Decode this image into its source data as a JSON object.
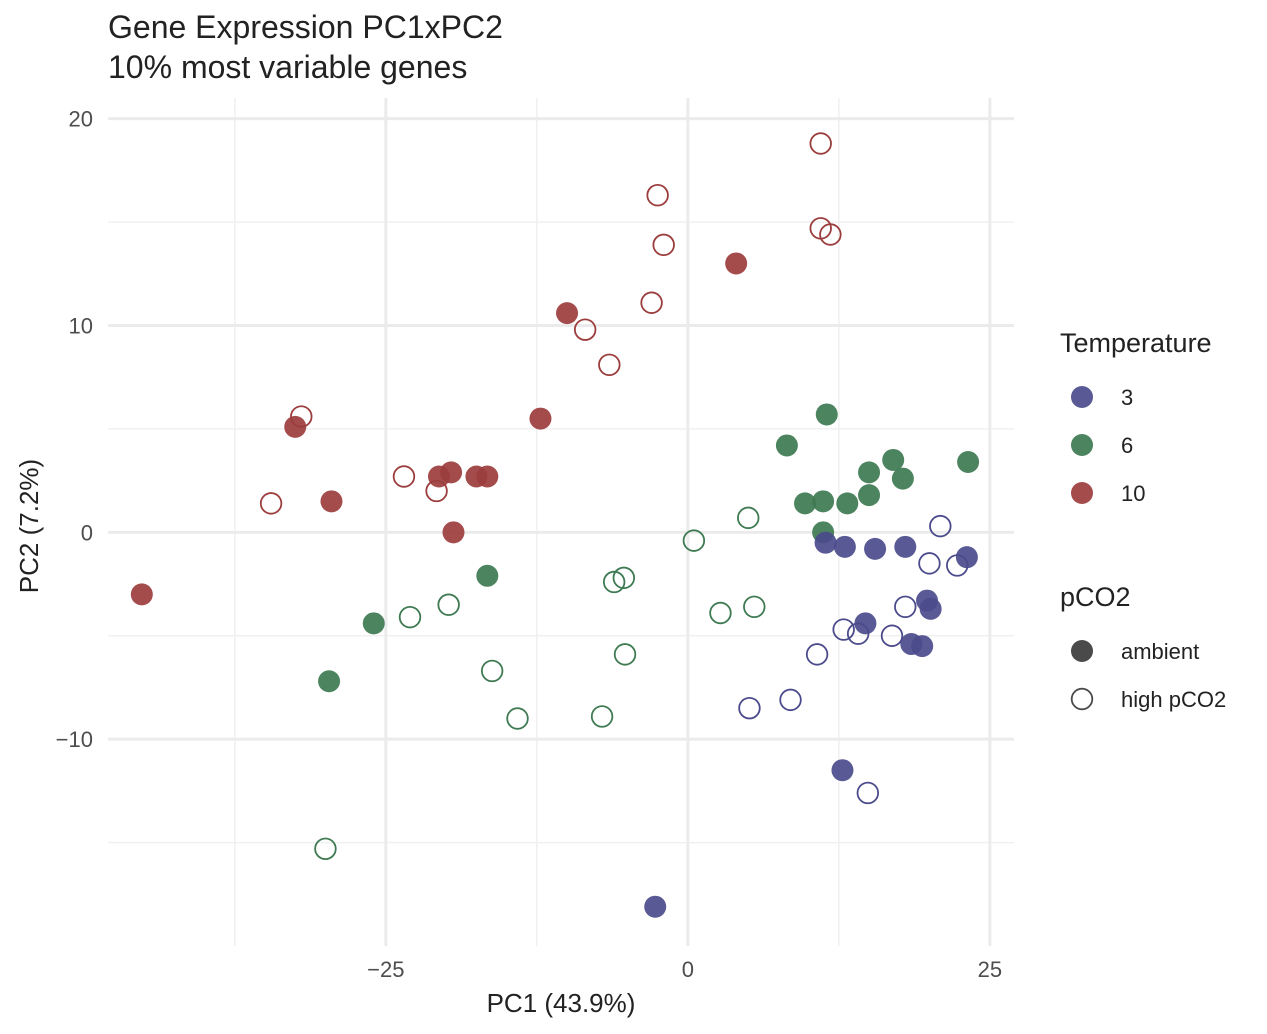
{
  "chart_data": {
    "type": "scatter",
    "title": "Gene Expression PC1xPC2",
    "subtitle": "10% most variable genes",
    "xlabel": "PC1 (43.9%)",
    "ylabel": "PC2 (7.2%)",
    "xlim": [
      -48,
      27
    ],
    "ylim": [
      -20,
      21
    ],
    "xticks": [
      -25,
      0,
      25
    ],
    "xtick_labels": [
      "−25",
      "0",
      "25"
    ],
    "yticks": [
      -10,
      0,
      10,
      20
    ],
    "ytick_labels": [
      "−10",
      "0",
      "10",
      "20"
    ],
    "grid": true,
    "legend_position": "right",
    "legends": [
      {
        "title": "Temperature",
        "items": [
          {
            "label": "3",
            "color": "#4b4b8c"
          },
          {
            "label": "6",
            "color": "#3e7a52"
          },
          {
            "label": "10",
            "color": "#9c3d3d"
          }
        ]
      },
      {
        "title": "pCO2",
        "items": [
          {
            "label": "ambient",
            "shape": "filled-circle"
          },
          {
            "label": "high pCO2",
            "shape": "open-circle"
          }
        ]
      }
    ],
    "colors": {
      "3": "#4b4b8c",
      "6": "#3e7a52",
      "10": "#9c3d3d"
    },
    "points": [
      {
        "x": 11,
        "y": 18.8,
        "temp": "10",
        "pco2": "high pCO2"
      },
      {
        "x": -2.5,
        "y": 16.3,
        "temp": "10",
        "pco2": "high pCO2"
      },
      {
        "x": 11,
        "y": 14.7,
        "temp": "10",
        "pco2": "high pCO2"
      },
      {
        "x": 11.8,
        "y": 14.4,
        "temp": "10",
        "pco2": "high pCO2"
      },
      {
        "x": -2,
        "y": 13.9,
        "temp": "10",
        "pco2": "high pCO2"
      },
      {
        "x": 4,
        "y": 13,
        "temp": "10",
        "pco2": "ambient"
      },
      {
        "x": -3,
        "y": 11.1,
        "temp": "10",
        "pco2": "high pCO2"
      },
      {
        "x": -10,
        "y": 10.6,
        "temp": "10",
        "pco2": "ambient"
      },
      {
        "x": -8.5,
        "y": 9.8,
        "temp": "10",
        "pco2": "high pCO2"
      },
      {
        "x": -6.5,
        "y": 8.1,
        "temp": "10",
        "pco2": "high pCO2"
      },
      {
        "x": -12.2,
        "y": 5.5,
        "temp": "10",
        "pco2": "ambient"
      },
      {
        "x": -32,
        "y": 5.6,
        "temp": "10",
        "pco2": "high pCO2"
      },
      {
        "x": -32.5,
        "y": 5.1,
        "temp": "10",
        "pco2": "ambient"
      },
      {
        "x": -23.5,
        "y": 2.7,
        "temp": "10",
        "pco2": "high pCO2"
      },
      {
        "x": -19.6,
        "y": 2.9,
        "temp": "10",
        "pco2": "ambient"
      },
      {
        "x": -20.6,
        "y": 2.7,
        "temp": "10",
        "pco2": "ambient"
      },
      {
        "x": -17.5,
        "y": 2.7,
        "temp": "10",
        "pco2": "ambient"
      },
      {
        "x": -16.6,
        "y": 2.7,
        "temp": "10",
        "pco2": "ambient"
      },
      {
        "x": -20.8,
        "y": 2,
        "temp": "10",
        "pco2": "high pCO2"
      },
      {
        "x": -34.5,
        "y": 1.4,
        "temp": "10",
        "pco2": "high pCO2"
      },
      {
        "x": -29.5,
        "y": 1.5,
        "temp": "10",
        "pco2": "ambient"
      },
      {
        "x": -19.4,
        "y": 0,
        "temp": "10",
        "pco2": "ambient"
      },
      {
        "x": -45.2,
        "y": -3,
        "temp": "10",
        "pco2": "ambient"
      },
      {
        "x": 11.5,
        "y": 5.7,
        "temp": "6",
        "pco2": "ambient"
      },
      {
        "x": 8.2,
        "y": 4.2,
        "temp": "6",
        "pco2": "ambient"
      },
      {
        "x": 17,
        "y": 3.5,
        "temp": "6",
        "pco2": "ambient"
      },
      {
        "x": 23.2,
        "y": 3.4,
        "temp": "6",
        "pco2": "ambient"
      },
      {
        "x": 15,
        "y": 2.9,
        "temp": "6",
        "pco2": "ambient"
      },
      {
        "x": 17.8,
        "y": 2.6,
        "temp": "6",
        "pco2": "ambient"
      },
      {
        "x": 15,
        "y": 1.8,
        "temp": "6",
        "pco2": "ambient"
      },
      {
        "x": 11.2,
        "y": 1.5,
        "temp": "6",
        "pco2": "ambient"
      },
      {
        "x": 9.7,
        "y": 1.4,
        "temp": "6",
        "pco2": "ambient"
      },
      {
        "x": 13.2,
        "y": 1.4,
        "temp": "6",
        "pco2": "ambient"
      },
      {
        "x": 11.2,
        "y": 0,
        "temp": "6",
        "pco2": "ambient"
      },
      {
        "x": 5,
        "y": 0.7,
        "temp": "6",
        "pco2": "high pCO2"
      },
      {
        "x": 0.5,
        "y": -0.4,
        "temp": "6",
        "pco2": "high pCO2"
      },
      {
        "x": -5.3,
        "y": -2.2,
        "temp": "6",
        "pco2": "high pCO2"
      },
      {
        "x": -6.1,
        "y": -2.4,
        "temp": "6",
        "pco2": "high pCO2"
      },
      {
        "x": -16.6,
        "y": -2.1,
        "temp": "6",
        "pco2": "ambient"
      },
      {
        "x": -19.8,
        "y": -3.5,
        "temp": "6",
        "pco2": "high pCO2"
      },
      {
        "x": 5.5,
        "y": -3.6,
        "temp": "6",
        "pco2": "high pCO2"
      },
      {
        "x": 2.7,
        "y": -3.9,
        "temp": "6",
        "pco2": "high pCO2"
      },
      {
        "x": -23,
        "y": -4.1,
        "temp": "6",
        "pco2": "high pCO2"
      },
      {
        "x": -26,
        "y": -4.4,
        "temp": "6",
        "pco2": "ambient"
      },
      {
        "x": -5.2,
        "y": -5.9,
        "temp": "6",
        "pco2": "high pCO2"
      },
      {
        "x": -16.2,
        "y": -6.7,
        "temp": "6",
        "pco2": "high pCO2"
      },
      {
        "x": -29.7,
        "y": -7.2,
        "temp": "6",
        "pco2": "ambient"
      },
      {
        "x": -14.1,
        "y": -9,
        "temp": "6",
        "pco2": "high pCO2"
      },
      {
        "x": -7.1,
        "y": -8.9,
        "temp": "6",
        "pco2": "high pCO2"
      },
      {
        "x": -30,
        "y": -15.3,
        "temp": "6",
        "pco2": "high pCO2"
      },
      {
        "x": 20.9,
        "y": 0.3,
        "temp": "3",
        "pco2": "high pCO2"
      },
      {
        "x": 11.4,
        "y": -0.5,
        "temp": "3",
        "pco2": "ambient"
      },
      {
        "x": 13,
        "y": -0.7,
        "temp": "3",
        "pco2": "ambient"
      },
      {
        "x": 15.5,
        "y": -0.8,
        "temp": "3",
        "pco2": "ambient"
      },
      {
        "x": 18,
        "y": -0.7,
        "temp": "3",
        "pco2": "ambient"
      },
      {
        "x": 23.1,
        "y": -1.2,
        "temp": "3",
        "pco2": "ambient"
      },
      {
        "x": 20,
        "y": -1.5,
        "temp": "3",
        "pco2": "high pCO2"
      },
      {
        "x": 22.3,
        "y": -1.6,
        "temp": "3",
        "pco2": "high pCO2"
      },
      {
        "x": 18,
        "y": -3.6,
        "temp": "3",
        "pco2": "high pCO2"
      },
      {
        "x": 19.8,
        "y": -3.3,
        "temp": "3",
        "pco2": "ambient"
      },
      {
        "x": 20.1,
        "y": -3.7,
        "temp": "3",
        "pco2": "ambient"
      },
      {
        "x": 14.7,
        "y": -4.4,
        "temp": "3",
        "pco2": "ambient"
      },
      {
        "x": 12.9,
        "y": -4.7,
        "temp": "3",
        "pco2": "high pCO2"
      },
      {
        "x": 14.1,
        "y": -4.9,
        "temp": "3",
        "pco2": "high pCO2"
      },
      {
        "x": 16.9,
        "y": -5,
        "temp": "3",
        "pco2": "high pCO2"
      },
      {
        "x": 18.5,
        "y": -5.4,
        "temp": "3",
        "pco2": "ambient"
      },
      {
        "x": 19.4,
        "y": -5.5,
        "temp": "3",
        "pco2": "ambient"
      },
      {
        "x": 10.7,
        "y": -5.9,
        "temp": "3",
        "pco2": "high pCO2"
      },
      {
        "x": 8.5,
        "y": -8.1,
        "temp": "3",
        "pco2": "high pCO2"
      },
      {
        "x": 5.1,
        "y": -8.5,
        "temp": "3",
        "pco2": "high pCO2"
      },
      {
        "x": 12.8,
        "y": -11.5,
        "temp": "3",
        "pco2": "ambient"
      },
      {
        "x": 14.9,
        "y": -12.6,
        "temp": "3",
        "pco2": "high pCO2"
      },
      {
        "x": -2.7,
        "y": -18.1,
        "temp": "3",
        "pco2": "ambient"
      }
    ]
  }
}
